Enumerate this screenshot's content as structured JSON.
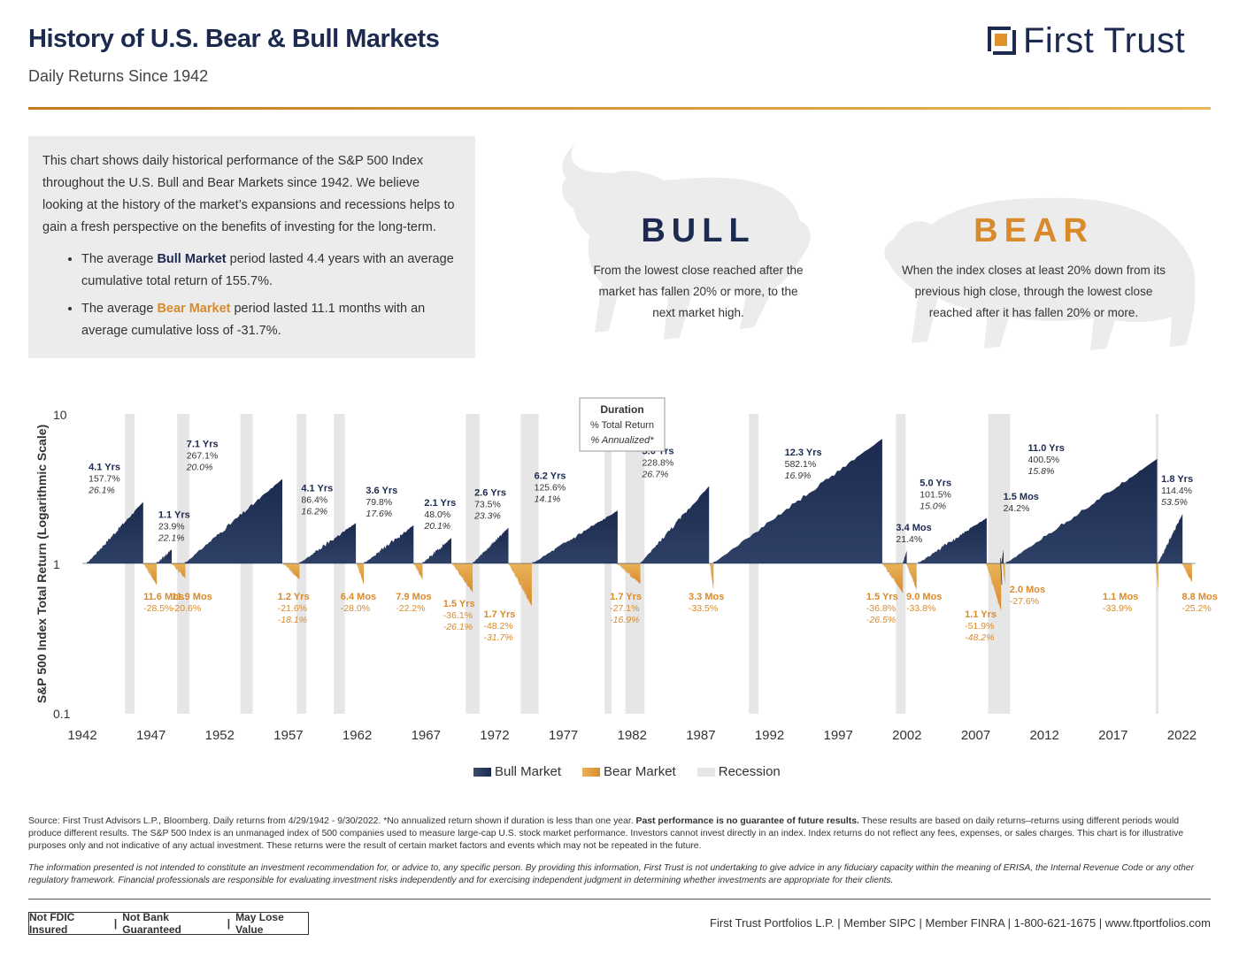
{
  "header": {
    "title": "History of U.S. Bear & Bull Markets",
    "subtitle": "Daily Returns Since 1942",
    "logo_text": "First Trust"
  },
  "intro": {
    "paragraph": "This chart shows daily historical performance of the S&P 500 Index throughout the U.S. Bull and Bear Markets since 1942. We believe looking at the history of the market’s expansions and recessions helps to gain a fresh perspective on the benefits of investing for the long-term.",
    "bullets": [
      {
        "pre": "The average ",
        "term": "Bull Market",
        "post": " period lasted 4.4 years with an average cumulative total return of 155.7%."
      },
      {
        "pre": "The average ",
        "term": "Bear Market",
        "post": " period lasted 11.1 months with an average cumulative loss of -31.7%."
      }
    ]
  },
  "definitions": {
    "bull_heading": "BULL",
    "bull_text": "From the lowest close reached after the market has fallen 20% or more, to the next market high.",
    "bear_heading": "BEAR",
    "bear_text": "When the index closes at least 20% down from its previous high close, through the lowest close reached after it has fallen 20% or more."
  },
  "colors": {
    "bull": "#1b2a4e",
    "bear": "#d98a2b",
    "recession": "#e6e6e6",
    "accent": "#c8791f"
  },
  "chart_data": {
    "type": "area",
    "ylabel": "S&P 500 Index Total Return (Logarithmic Scale)",
    "yscale": "log",
    "ylim": [
      0.1,
      10
    ],
    "yticks": [
      "10",
      "1",
      "0.1"
    ],
    "xlim": [
      1942,
      2023
    ],
    "xticks": [
      1942,
      1947,
      1952,
      1957,
      1962,
      1967,
      1972,
      1977,
      1982,
      1987,
      1992,
      1997,
      2002,
      2007,
      2012,
      2017,
      2022
    ],
    "recessions": [
      [
        1945.1,
        1945.8
      ],
      [
        1948.9,
        1949.8
      ],
      [
        1953.5,
        1954.4
      ],
      [
        1957.6,
        1958.3
      ],
      [
        1960.3,
        1961.1
      ],
      [
        1969.9,
        1970.9
      ],
      [
        1973.9,
        1975.2
      ],
      [
        1980.0,
        1980.5
      ],
      [
        1981.5,
        1982.9
      ],
      [
        1990.5,
        1991.2
      ],
      [
        2001.2,
        2001.9
      ],
      [
        2007.9,
        2009.5
      ],
      [
        2020.1,
        2020.3
      ]
    ],
    "bull_markets": [
      {
        "start": 1942.33,
        "duration": "4.1 Yrs",
        "return_pct": 157.7,
        "total": "157.7%",
        "annualized": "26.1%"
      },
      {
        "start": 1947.4,
        "duration": "1.1 Yrs",
        "return_pct": 23.9,
        "total": "23.9%",
        "annualized": "22.1%"
      },
      {
        "start": 1949.45,
        "duration": "7.1 Yrs",
        "return_pct": 267.1,
        "total": "267.1%",
        "annualized": "20.0%"
      },
      {
        "start": 1957.8,
        "duration": "4.1 Yrs",
        "return_pct": 86.4,
        "total": "86.4%",
        "annualized": "16.2%"
      },
      {
        "start": 1962.5,
        "duration": "3.6 Yrs",
        "return_pct": 79.8,
        "total": "79.8%",
        "annualized": "17.6%"
      },
      {
        "start": 1966.75,
        "duration": "2.1 Yrs",
        "return_pct": 48.0,
        "total": "48.0%",
        "annualized": "20.1%"
      },
      {
        "start": 1970.4,
        "duration": "2.6 Yrs",
        "return_pct": 73.5,
        "total": "73.5%",
        "annualized": "23.3%"
      },
      {
        "start": 1974.75,
        "duration": "6.2 Yrs",
        "return_pct": 125.6,
        "total": "125.6%",
        "annualized": "14.1%"
      },
      {
        "start": 1982.6,
        "duration": "5.0 Yrs",
        "return_pct": 228.8,
        "total": "228.8%",
        "annualized": "26.7%"
      },
      {
        "start": 1987.9,
        "duration": "12.3 Yrs",
        "return_pct": 582.1,
        "total": "582.1%",
        "annualized": "16.9%"
      },
      {
        "start": 2001.7,
        "duration": "3.4 Mos",
        "return_pct": 21.4,
        "total": "21.4%",
        "annualized": ""
      },
      {
        "start": 2002.8,
        "duration": "5.0 Yrs",
        "return_pct": 101.5,
        "total": "101.5%",
        "annualized": "15.0%"
      },
      {
        "start": 2008.85,
        "duration": "1.5 Mos",
        "return_pct": 24.2,
        "total": "24.2%",
        "annualized": ""
      },
      {
        "start": 2009.2,
        "duration": "11.0 Yrs",
        "return_pct": 400.5,
        "total": "400.5%",
        "annualized": "15.8%"
      },
      {
        "start": 2020.25,
        "duration": "1.8 Yrs",
        "return_pct": 114.4,
        "total": "114.4%",
        "annualized": "53.5%"
      }
    ],
    "bear_markets": [
      {
        "start": 1946.45,
        "duration": "11.6 Mos",
        "return_pct": -28.5,
        "total": "-28.5%",
        "annualized": ""
      },
      {
        "start": 1948.5,
        "duration": "11.9 Mos",
        "return_pct": -20.6,
        "total": "-20.6%",
        "annualized": ""
      },
      {
        "start": 1956.6,
        "duration": "1.2 Yrs",
        "return_pct": -21.6,
        "total": "-21.6%",
        "annualized": "-18.1%"
      },
      {
        "start": 1961.95,
        "duration": "6.4 Mos",
        "return_pct": -28.0,
        "total": "-28.0%",
        "annualized": ""
      },
      {
        "start": 1966.1,
        "duration": "7.9 Mos",
        "return_pct": -22.2,
        "total": "-22.2%",
        "annualized": ""
      },
      {
        "start": 1968.9,
        "duration": "1.5 Yrs",
        "return_pct": -36.1,
        "total": "-36.1%",
        "annualized": "-26.1%"
      },
      {
        "start": 1973.0,
        "duration": "1.7 Yrs",
        "return_pct": -48.2,
        "total": "-48.2%",
        "annualized": "-31.7%"
      },
      {
        "start": 1980.9,
        "duration": "1.7 Yrs",
        "return_pct": -27.1,
        "total": "-27.1%",
        "annualized": "-16.9%"
      },
      {
        "start": 1987.65,
        "duration": "3.3 Mos",
        "return_pct": -33.5,
        "total": "-33.5%",
        "annualized": ""
      },
      {
        "start": 2000.2,
        "duration": "1.5 Yrs",
        "return_pct": -36.8,
        "total": "-36.8%",
        "annualized": "-26.5%"
      },
      {
        "start": 2001.95,
        "duration": "9.0 Mos",
        "return_pct": -33.8,
        "total": "-33.8%",
        "annualized": ""
      },
      {
        "start": 2007.75,
        "duration": "1.1 Yrs",
        "return_pct": -51.9,
        "total": "-51.9%",
        "annualized": "-48.2%"
      },
      {
        "start": 2008.95,
        "duration": "2.0 Mos",
        "return_pct": -27.6,
        "total": "-27.6%",
        "annualized": ""
      },
      {
        "start": 2020.1,
        "duration": "1.1 Mos",
        "return_pct": -33.9,
        "total": "-33.9%",
        "annualized": ""
      },
      {
        "start": 2022.0,
        "duration": "8.8 Mos",
        "return_pct": -25.2,
        "total": "-25.2%",
        "annualized": ""
      }
    ],
    "key_box": {
      "line1": "Duration",
      "line2": "% Total Return",
      "line3": "% Annualized*"
    },
    "legend": [
      "Bull Market",
      "Bear Market",
      "Recession"
    ]
  },
  "footer": {
    "source_pre": "Source: First Trust Advisors L.P., Bloomberg. Daily returns from 4/29/1942 - 9/30/2022. *No annualized return shown if duration is less than one year. ",
    "source_bold": "Past performance is no guarantee of future results.",
    "source_post": " These results are based on daily returns–returns using different periods would produce different results. The S&P 500 Index is an unmanaged index of 500 companies used to measure large-cap U.S. stock market performance. Investors cannot invest directly in an index. Index returns do not reflect any fees, expenses, or sales charges. This chart is for illustrative purposes only and not indicative of any actual investment. These returns were the result of certain market factors and events which may not be repeated in the future.",
    "legal": "The information presented is not intended to constitute an investment recommendation for, or advice to, any specific person. By providing this information, First Trust is not undertaking to give advice in any fiduciary capacity within the meaning of ERISA, the Internal Revenue Code or any other regulatory framework. Financial professionals are responsible for evaluating investment risks independently and for exercising independent judgment in determining whether investments are appropriate for their clients.",
    "badge": [
      "Not FDIC Insured",
      "Not Bank Guaranteed",
      "May Lose Value"
    ],
    "contact": "First Trust Portfolios L.P.  |  Member SIPC  |  Member FINRA  |  1-800-621-1675  |  www.ftportfolios.com"
  }
}
